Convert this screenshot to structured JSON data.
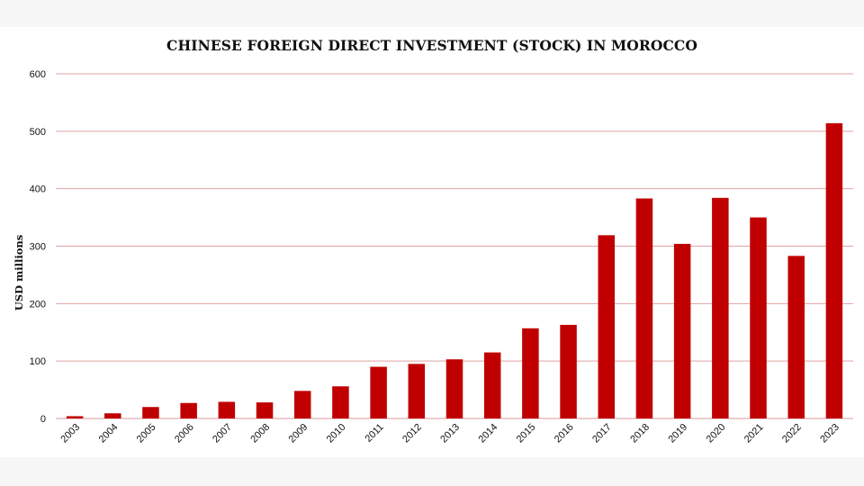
{
  "chart_data": {
    "type": "bar",
    "title": "CHINESE FOREIGN DIRECT INVESTMENT (STOCK) IN MOROCCO",
    "xlabel": "",
    "ylabel": "USD millions",
    "ylim": [
      0,
      600
    ],
    "yticks": [
      0,
      100,
      200,
      300,
      400,
      500,
      600
    ],
    "grid": true,
    "legend": "none",
    "bar_color": "#c00000",
    "grid_color": "#e3a3a3",
    "categories": [
      "2003",
      "2004",
      "2005",
      "2006",
      "2007",
      "2008",
      "2009",
      "2010",
      "2011",
      "2012",
      "2013",
      "2014",
      "2015",
      "2016",
      "2017",
      "2018",
      "2019",
      "2020",
      "2021",
      "2022",
      "2023"
    ],
    "values": [
      4,
      9,
      20,
      27,
      29,
      28,
      48,
      56,
      90,
      95,
      103,
      115,
      157,
      163,
      319,
      383,
      304,
      384,
      350,
      283,
      514
    ]
  }
}
